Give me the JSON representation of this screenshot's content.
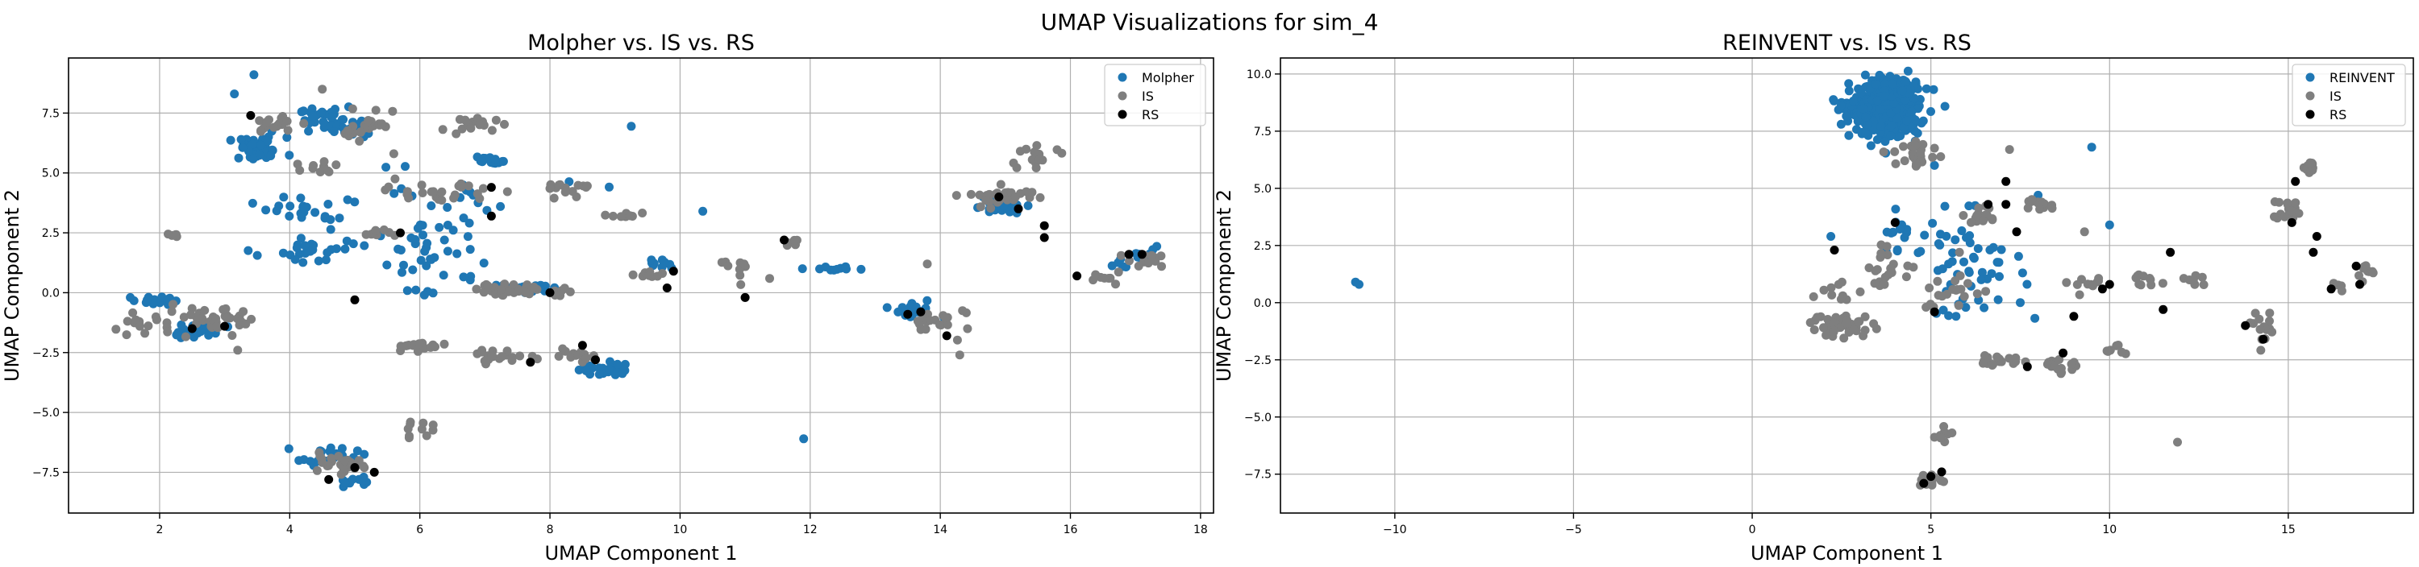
{
  "figure": {
    "suptitle": "UMAP Visualizations for sim_4"
  },
  "colors": {
    "generated": "#1f77b4",
    "is": "#7f7f7f",
    "rs": "#000000",
    "grid": "#b0b0b0",
    "axis": "#000000"
  },
  "chart_data": [
    {
      "type": "scatter",
      "title": "Molpher vs. IS vs. RS",
      "xlabel": "UMAP Component 1",
      "ylabel": "UMAP Component 2",
      "xlim": [
        0.6,
        18.2
      ],
      "ylim": [
        -9.2,
        9.8
      ],
      "xticks": [
        2,
        4,
        6,
        8,
        10,
        12,
        14,
        16,
        18
      ],
      "yticks": [
        -7.5,
        -5.0,
        -2.5,
        0.0,
        2.5,
        5.0,
        7.5
      ],
      "grid": true,
      "legend_position": "top-right",
      "series": [
        {
          "name": "Molpher",
          "color": "#1f77b4",
          "clusters": [
            [
              3.5,
              6.0,
              0.45,
              0.5,
              45
            ],
            [
              4.6,
              7.2,
              0.45,
              0.55,
              35
            ],
            [
              5.0,
              6.8,
              0.3,
              0.3,
              20
            ],
            [
              4.2,
              3.5,
              0.6,
              0.5,
              20
            ],
            [
              4.5,
              1.8,
              0.7,
              0.6,
              25
            ],
            [
              6.2,
              1.5,
              0.8,
              1.4,
              25
            ],
            [
              7.6,
              0.2,
              0.6,
              0.2,
              35
            ],
            [
              8.8,
              -3.2,
              0.35,
              0.35,
              25
            ],
            [
              1.9,
              -0.3,
              0.3,
              0.2,
              15
            ],
            [
              2.6,
              -1.6,
              0.45,
              0.35,
              25
            ],
            [
              4.6,
              -6.8,
              0.45,
              0.35,
              25
            ],
            [
              5.0,
              -7.9,
              0.25,
              0.2,
              12
            ],
            [
              14.9,
              3.6,
              0.4,
              0.3,
              25
            ],
            [
              13.6,
              -0.8,
              0.35,
              0.4,
              22
            ],
            [
              7.1,
              5.5,
              0.35,
              0.2,
              15
            ],
            [
              12.5,
              1.0,
              0.5,
              0.1,
              10
            ],
            [
              9.6,
              1.2,
              0.2,
              0.3,
              10
            ],
            [
              6.0,
              3.2,
              2.0,
              2.5,
              40
            ],
            [
              17.1,
              1.6,
              0.25,
              0.4,
              10
            ],
            [
              16.8,
              1.1,
              0.15,
              0.2,
              5
            ]
          ],
          "points": [
            [
              10.35,
              3.4
            ],
            [
              11.9,
              -6.1
            ],
            [
              3.45,
              9.1
            ],
            [
              3.15,
              8.3
            ],
            [
              9.25,
              6.95
            ],
            [
              1.55,
              -0.2
            ]
          ]
        },
        {
          "name": "IS",
          "color": "#7f7f7f",
          "clusters": [
            [
              3.7,
              7.0,
              0.4,
              0.4,
              20
            ],
            [
              5.2,
              7.0,
              0.5,
              0.6,
              25
            ],
            [
              6.8,
              7.0,
              0.4,
              0.3,
              15
            ],
            [
              6.3,
              4.2,
              0.8,
              0.5,
              25
            ],
            [
              8.3,
              4.4,
              0.4,
              0.3,
              15
            ],
            [
              7.6,
              0.1,
              0.8,
              0.25,
              35
            ],
            [
              9.5,
              0.8,
              0.3,
              0.3,
              10
            ],
            [
              9.2,
              3.2,
              0.3,
              0.2,
              8
            ],
            [
              2.8,
              -1.2,
              0.8,
              0.5,
              40
            ],
            [
              1.7,
              -1.4,
              0.4,
              0.4,
              15
            ],
            [
              4.7,
              -7.2,
              0.5,
              0.4,
              25
            ],
            [
              5.9,
              -5.7,
              0.3,
              0.3,
              10
            ],
            [
              14.0,
              -1.2,
              0.5,
              0.6,
              20
            ],
            [
              14.9,
              4.0,
              0.6,
              0.5,
              30
            ],
            [
              15.5,
              5.7,
              0.4,
              0.4,
              15
            ],
            [
              11.0,
              1.0,
              0.4,
              0.4,
              10
            ],
            [
              11.7,
              2.1,
              0.15,
              0.15,
              5
            ],
            [
              16.5,
              0.6,
              0.3,
              0.3,
              8
            ],
            [
              17.2,
              1.4,
              0.35,
              0.4,
              12
            ],
            [
              7.2,
              -2.7,
              0.5,
              0.3,
              20
            ],
            [
              8.4,
              -2.5,
              0.5,
              0.3,
              15
            ],
            [
              6.0,
              -2.3,
              0.6,
              0.3,
              15
            ],
            [
              4.5,
              5.2,
              0.4,
              0.4,
              10
            ],
            [
              2.3,
              2.4,
              0.2,
              0.1,
              5
            ],
            [
              5.4,
              2.5,
              0.4,
              0.3,
              8
            ]
          ],
          "points": [
            [
              4.5,
              8.5
            ],
            [
              5.6,
              5.8
            ],
            [
              13.8,
              1.2
            ],
            [
              14.3,
              -2.6
            ],
            [
              11.0,
              -0.2
            ],
            [
              3.2,
              -2.4
            ]
          ]
        },
        {
          "name": "RS",
          "color": "#000000",
          "points": [
            [
              3.4,
              7.4
            ],
            [
              5.0,
              -7.3
            ],
            [
              5.3,
              -7.5
            ],
            [
              4.6,
              -7.8
            ],
            [
              7.1,
              4.4
            ],
            [
              7.7,
              -2.9
            ],
            [
              8.0,
              0.0
            ],
            [
              8.7,
              -2.8
            ],
            [
              8.5,
              -2.2
            ],
            [
              9.9,
              0.9
            ],
            [
              9.8,
              0.2
            ],
            [
              11.6,
              2.2
            ],
            [
              11.0,
              -0.2
            ],
            [
              13.7,
              -0.8
            ],
            [
              14.1,
              -1.8
            ],
            [
              14.9,
              4.0
            ],
            [
              15.2,
              3.5
            ],
            [
              15.6,
              2.8
            ],
            [
              15.6,
              2.3
            ],
            [
              16.1,
              0.7
            ],
            [
              16.9,
              1.6
            ],
            [
              17.1,
              1.6
            ],
            [
              7.1,
              3.2
            ],
            [
              5.0,
              -0.3
            ],
            [
              2.5,
              -1.5
            ],
            [
              3.0,
              -1.4
            ],
            [
              5.7,
              2.5
            ],
            [
              13.5,
              -0.9
            ]
          ]
        }
      ]
    },
    {
      "type": "scatter",
      "title": "REINVENT vs. IS vs. RS",
      "xlabel": "UMAP Component 1",
      "ylabel": "UMAP Component 2",
      "xlim": [
        -13.2,
        18.5
      ],
      "ylim": [
        -9.2,
        10.7
      ],
      "xticks": [
        -10,
        -5,
        0,
        5,
        10,
        15
      ],
      "yticks": [
        -7.5,
        -5.0,
        -2.5,
        0.0,
        2.5,
        5.0,
        7.5,
        10.0
      ],
      "grid": true,
      "legend_position": "top-right",
      "series": [
        {
          "name": "REINVENT",
          "color": "#1f77b4",
          "clusters": [
            [
              3.7,
              8.4,
              0.95,
              1.1,
              450
            ],
            [
              4.0,
              9.3,
              0.6,
              0.5,
              120
            ],
            [
              6.0,
              1.6,
              1.6,
              2.2,
              55
            ],
            [
              4.2,
              3.0,
              0.8,
              1.0,
              15
            ]
          ],
          "points": [
            [
              -11.1,
              0.9
            ],
            [
              -11.0,
              0.8
            ],
            [
              10.0,
              3.4
            ],
            [
              5.1,
              6.0
            ],
            [
              9.5,
              6.8
            ],
            [
              2.2,
              2.9
            ],
            [
              8.0,
              4.7
            ]
          ]
        },
        {
          "name": "IS",
          "color": "#7f7f7f",
          "clusters": [
            [
              2.5,
              -1.0,
              0.9,
              0.5,
              45
            ],
            [
              4.6,
              6.5,
              0.6,
              0.7,
              25
            ],
            [
              5.0,
              -7.8,
              0.4,
              0.3,
              20
            ],
            [
              5.3,
              -5.8,
              0.3,
              0.3,
              8
            ],
            [
              7.0,
              -2.5,
              0.6,
              0.3,
              20
            ],
            [
              8.6,
              -2.7,
              0.5,
              0.4,
              15
            ],
            [
              8.0,
              4.3,
              0.6,
              0.3,
              15
            ],
            [
              6.5,
              3.8,
              0.6,
              0.4,
              15
            ],
            [
              9.4,
              0.7,
              0.4,
              0.3,
              10
            ],
            [
              11.0,
              0.9,
              0.4,
              0.4,
              10
            ],
            [
              12.5,
              1.0,
              0.4,
              0.3,
              8
            ],
            [
              14.3,
              -1.2,
              0.4,
              0.6,
              15
            ],
            [
              15.0,
              4.0,
              0.4,
              0.5,
              20
            ],
            [
              15.6,
              5.9,
              0.3,
              0.3,
              10
            ],
            [
              17.2,
              1.4,
              0.3,
              0.4,
              10
            ],
            [
              16.4,
              0.7,
              0.3,
              0.3,
              5
            ],
            [
              3.8,
              1.5,
              0.8,
              0.8,
              20
            ],
            [
              10.1,
              -2.0,
              0.4,
              0.3,
              8
            ],
            [
              5.5,
              0.5,
              1.0,
              1.0,
              20
            ],
            [
              2.5,
              0.5,
              0.5,
              0.5,
              10
            ]
          ],
          "points": [
            [
              11.9,
              -6.1
            ],
            [
              9.3,
              3.1
            ],
            [
              5.8,
              2.2
            ],
            [
              7.2,
              6.7
            ]
          ]
        },
        {
          "name": "RS",
          "color": "#000000",
          "points": [
            [
              2.3,
              2.3
            ],
            [
              5.0,
              -7.6
            ],
            [
              5.3,
              -7.4
            ],
            [
              4.8,
              -7.9
            ],
            [
              7.1,
              4.3
            ],
            [
              7.4,
              3.1
            ],
            [
              7.7,
              -2.8
            ],
            [
              8.7,
              -2.2
            ],
            [
              9.0,
              -0.6
            ],
            [
              9.8,
              0.6
            ],
            [
              10.0,
              0.8
            ],
            [
              11.7,
              2.2
            ],
            [
              11.5,
              -0.3
            ],
            [
              13.8,
              -1.0
            ],
            [
              14.3,
              -1.6
            ],
            [
              15.1,
              3.5
            ],
            [
              15.2,
              5.3
            ],
            [
              15.8,
              2.9
            ],
            [
              15.7,
              2.2
            ],
            [
              16.2,
              0.6
            ],
            [
              16.9,
              1.6
            ],
            [
              17.0,
              0.8
            ],
            [
              5.1,
              -0.4
            ],
            [
              4.0,
              3.5
            ],
            [
              6.6,
              4.3
            ],
            [
              7.1,
              5.3
            ]
          ]
        }
      ]
    }
  ]
}
